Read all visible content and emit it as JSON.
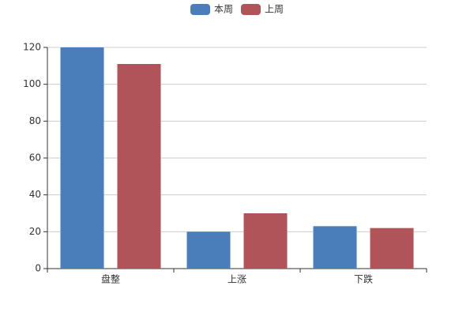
{
  "chart_data": {
    "type": "bar",
    "categories": [
      "盘整",
      "上涨",
      "下跌"
    ],
    "series": [
      {
        "name": "本周",
        "color": "#4a7ebb",
        "values": [
          120,
          20,
          23
        ]
      },
      {
        "name": "上周",
        "color": "#b05459",
        "values": [
          111,
          30,
          22
        ]
      }
    ],
    "ylim": [
      0,
      120
    ],
    "yticks": [
      0,
      20,
      40,
      60,
      80,
      100,
      120
    ],
    "grid": true,
    "legend": "top"
  }
}
